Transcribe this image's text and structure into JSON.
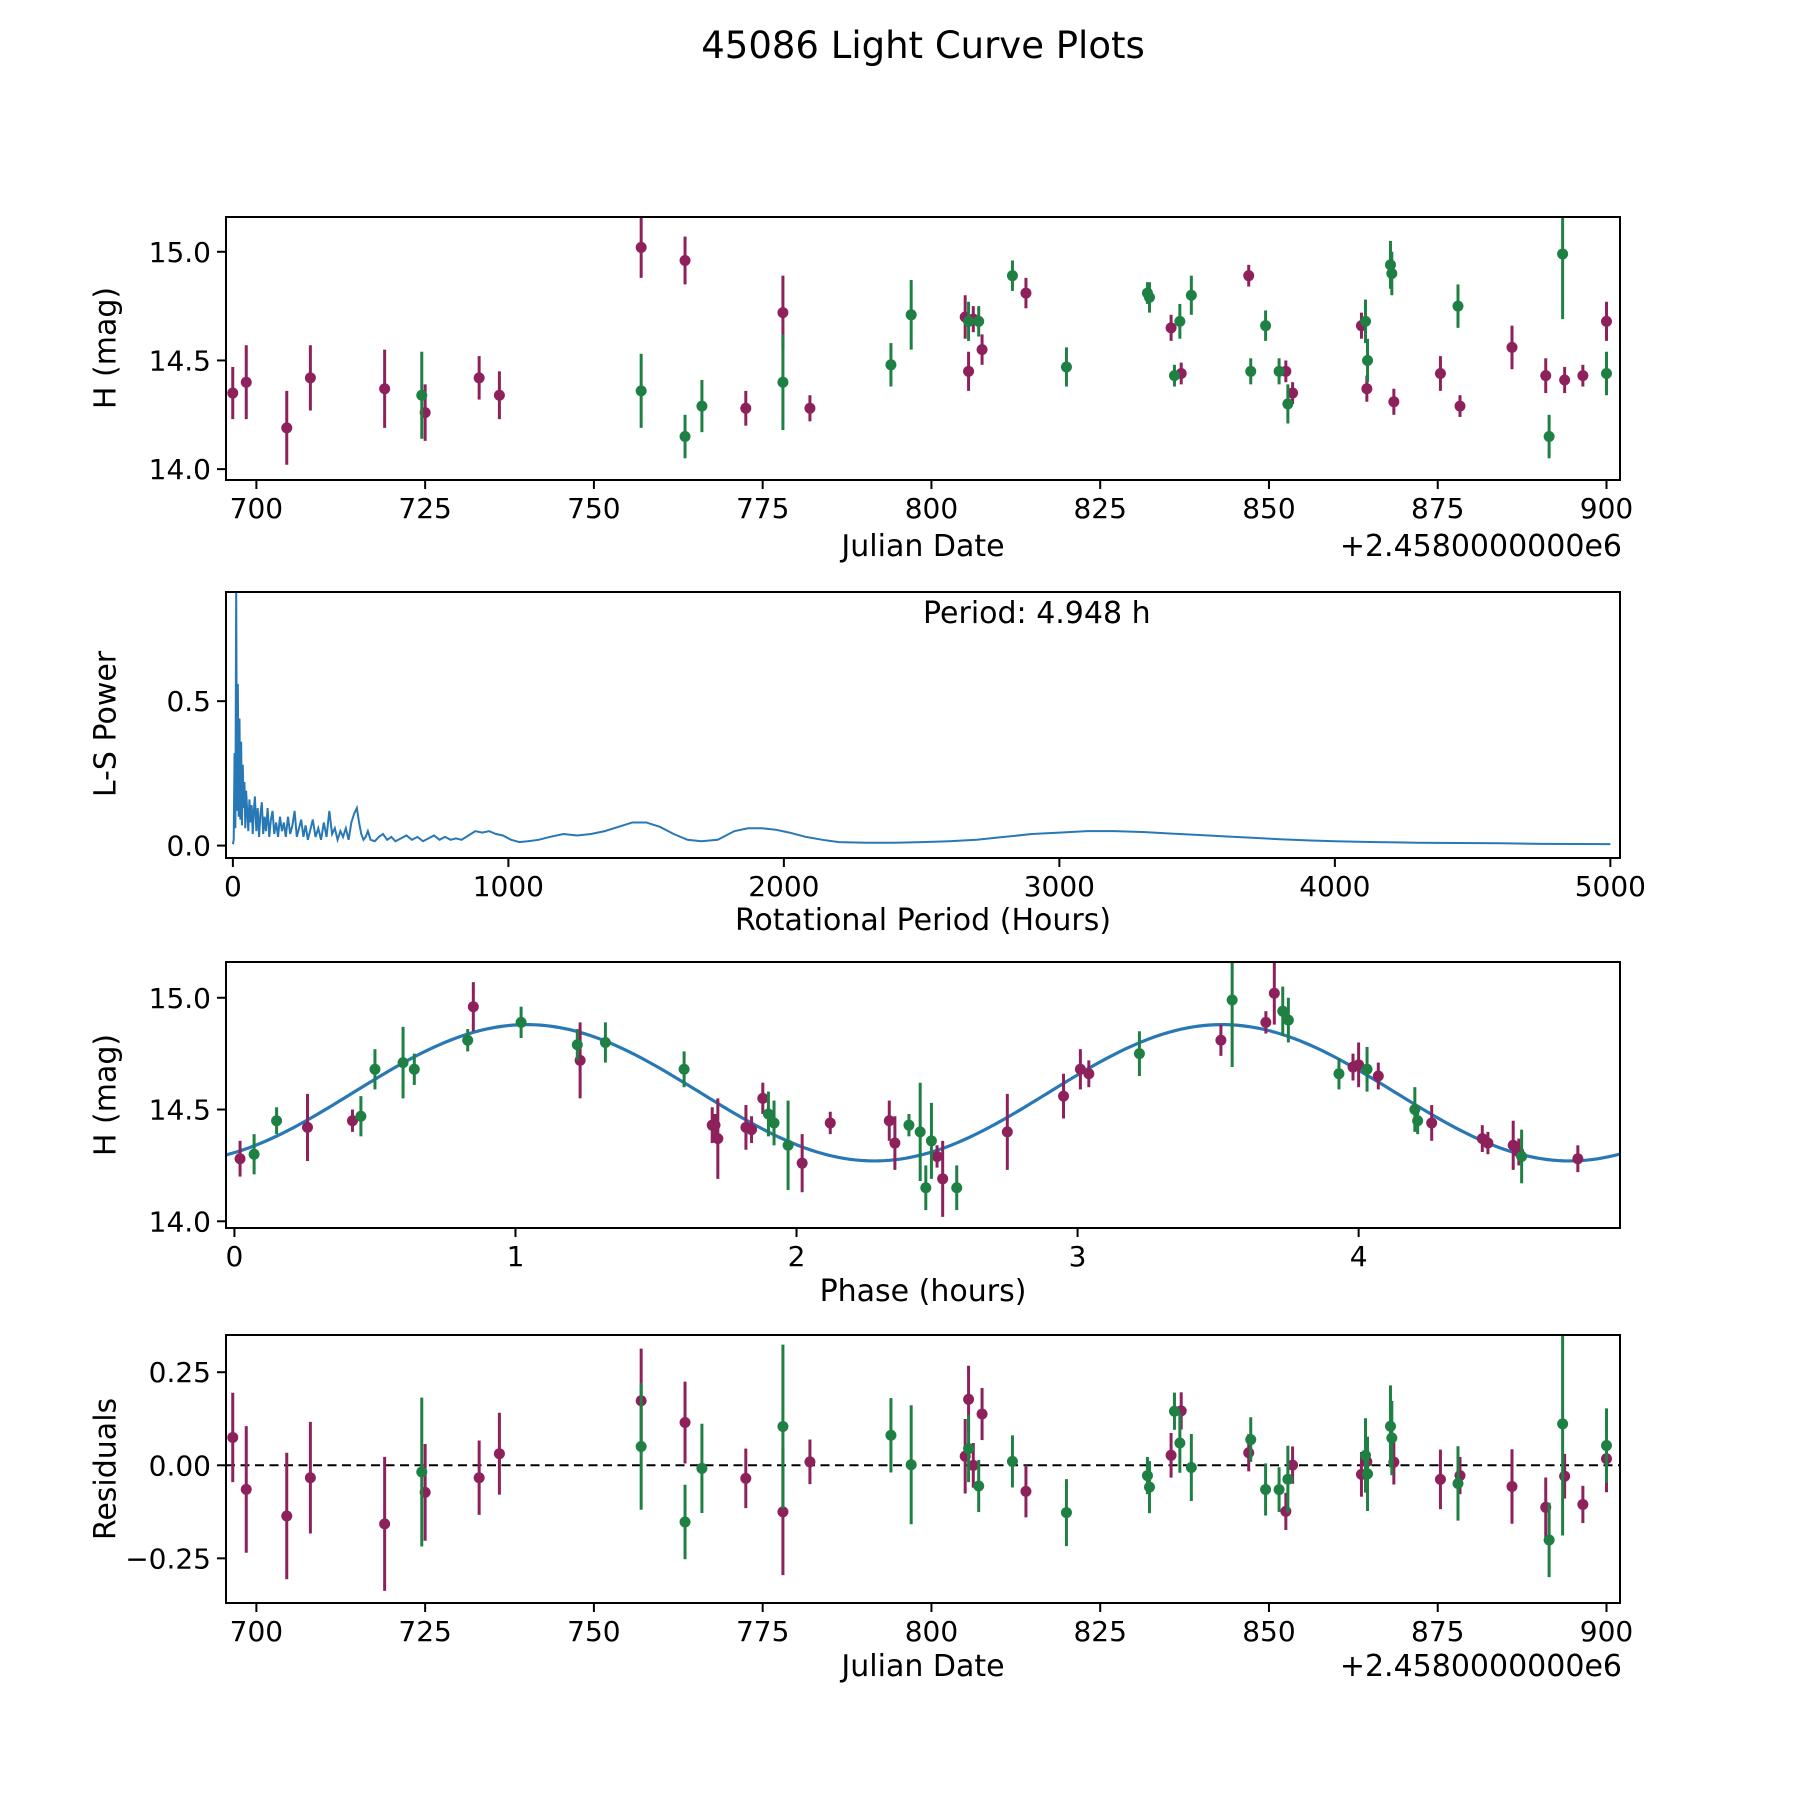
{
  "title": "45086 Light Curve Plots",
  "band_colors": {
    "green": "#1f8044",
    "purple": "#8e215c"
  },
  "line_color": "#2878b5",
  "points": [
    {
      "band": "purple",
      "jd": 696.5,
      "phase": 2.35,
      "mag": 14.35,
      "err": 0.12
    },
    {
      "band": "purple",
      "jd": 698.5,
      "phase": 2.75,
      "mag": 14.4,
      "err": 0.17
    },
    {
      "band": "purple",
      "jd": 704.5,
      "phase": 2.52,
      "mag": 14.19,
      "err": 0.17
    },
    {
      "band": "purple",
      "jd": 708.0,
      "phase": 0.26,
      "mag": 14.42,
      "err": 0.15
    },
    {
      "band": "purple",
      "jd": 719.0,
      "phase": 1.72,
      "mag": 14.37,
      "err": 0.18
    },
    {
      "band": "purple",
      "jd": 725.0,
      "phase": 2.02,
      "mag": 14.26,
      "err": 0.13
    },
    {
      "band": "purple",
      "jd": 733.0,
      "phase": 1.82,
      "mag": 14.42,
      "err": 0.1
    },
    {
      "band": "purple",
      "jd": 736.0,
      "phase": 4.55,
      "mag": 14.34,
      "err": 0.11
    },
    {
      "band": "purple",
      "jd": 757.0,
      "phase": 3.7,
      "mag": 15.02,
      "err": 0.14
    },
    {
      "band": "purple",
      "jd": 763.5,
      "phase": 0.85,
      "mag": 14.96,
      "err": 0.11
    },
    {
      "band": "purple",
      "jd": 772.5,
      "phase": 0.02,
      "mag": 14.28,
      "err": 0.08
    },
    {
      "band": "purple",
      "jd": 778.0,
      "phase": 1.23,
      "mag": 14.72,
      "err": 0.17
    },
    {
      "band": "purple",
      "jd": 782.0,
      "phase": 4.78,
      "mag": 14.28,
      "err": 0.06
    },
    {
      "band": "purple",
      "jd": 805.0,
      "phase": 4.0,
      "mag": 14.7,
      "err": 0.1
    },
    {
      "band": "purple",
      "jd": 805.5,
      "phase": 2.33,
      "mag": 14.45,
      "err": 0.09
    },
    {
      "band": "purple",
      "jd": 806.2,
      "phase": 3.98,
      "mag": 14.69,
      "err": 0.06
    },
    {
      "band": "purple",
      "jd": 807.5,
      "phase": 1.88,
      "mag": 14.55,
      "err": 0.07
    },
    {
      "band": "purple",
      "jd": 814.0,
      "phase": 3.51,
      "mag": 14.81,
      "err": 0.07
    },
    {
      "band": "purple",
      "jd": 835.5,
      "phase": 4.07,
      "mag": 14.65,
      "err": 0.06
    },
    {
      "band": "purple",
      "jd": 837.0,
      "phase": 2.12,
      "mag": 14.44,
      "err": 0.05
    },
    {
      "band": "purple",
      "jd": 847.0,
      "phase": 3.67,
      "mag": 14.89,
      "err": 0.05
    },
    {
      "band": "purple",
      "jd": 852.5,
      "phase": 0.42,
      "mag": 14.45,
      "err": 0.05
    },
    {
      "band": "purple",
      "jd": 853.5,
      "phase": 4.46,
      "mag": 14.35,
      "err": 0.05
    },
    {
      "band": "purple",
      "jd": 863.7,
      "phase": 3.04,
      "mag": 14.66,
      "err": 0.06
    },
    {
      "band": "purple",
      "jd": 864.5,
      "phase": 4.44,
      "mag": 14.37,
      "err": 0.06
    },
    {
      "band": "purple",
      "jd": 868.5,
      "phase": 4.57,
      "mag": 14.31,
      "err": 0.06
    },
    {
      "band": "purple",
      "jd": 875.4,
      "phase": 4.26,
      "mag": 14.44,
      "err": 0.08
    },
    {
      "band": "purple",
      "jd": 878.3,
      "phase": 2.5,
      "mag": 14.29,
      "err": 0.05
    },
    {
      "band": "purple",
      "jd": 886.0,
      "phase": 2.95,
      "mag": 14.56,
      "err": 0.1
    },
    {
      "band": "purple",
      "jd": 891.0,
      "phase": 1.7,
      "mag": 14.43,
      "err": 0.08
    },
    {
      "band": "purple",
      "jd": 893.8,
      "phase": 1.84,
      "mag": 14.41,
      "err": 0.06
    },
    {
      "band": "purple",
      "jd": 896.5,
      "phase": 1.71,
      "mag": 14.43,
      "err": 0.05
    },
    {
      "band": "purple",
      "jd": 900.0,
      "phase": 3.01,
      "mag": 14.68,
      "err": 0.09
    },
    {
      "band": "green",
      "jd": 724.5,
      "phase": 1.97,
      "mag": 14.34,
      "err": 0.2
    },
    {
      "band": "green",
      "jd": 757.0,
      "phase": 2.48,
      "mag": 14.36,
      "err": 0.17
    },
    {
      "band": "green",
      "jd": 763.5,
      "phase": 2.46,
      "mag": 14.15,
      "err": 0.1
    },
    {
      "band": "green",
      "jd": 766.0,
      "phase": 4.58,
      "mag": 14.29,
      "err": 0.12
    },
    {
      "band": "green",
      "jd": 778.0,
      "phase": 2.44,
      "mag": 14.4,
      "err": 0.22
    },
    {
      "band": "green",
      "jd": 794.0,
      "phase": 1.9,
      "mag": 14.48,
      "err": 0.1
    },
    {
      "band": "green",
      "jd": 797.0,
      "phase": 0.6,
      "mag": 14.71,
      "err": 0.16
    },
    {
      "band": "green",
      "jd": 805.5,
      "phase": 0.5,
      "mag": 14.68,
      "err": 0.09
    },
    {
      "band": "green",
      "jd": 807.0,
      "phase": 0.64,
      "mag": 14.68,
      "err": 0.07
    },
    {
      "band": "green",
      "jd": 812.0,
      "phase": 1.02,
      "mag": 14.89,
      "err": 0.07
    },
    {
      "band": "green",
      "jd": 820.0,
      "phase": 0.45,
      "mag": 14.47,
      "err": 0.09
    },
    {
      "band": "green",
      "jd": 832.0,
      "phase": 0.83,
      "mag": 14.81,
      "err": 0.05
    },
    {
      "band": "green",
      "jd": 832.3,
      "phase": 1.22,
      "mag": 14.79,
      "err": 0.07
    },
    {
      "band": "green",
      "jd": 836.0,
      "phase": 2.4,
      "mag": 14.43,
      "err": 0.05
    },
    {
      "band": "green",
      "jd": 836.8,
      "phase": 1.6,
      "mag": 14.68,
      "err": 0.08
    },
    {
      "band": "green",
      "jd": 838.5,
      "phase": 1.32,
      "mag": 14.8,
      "err": 0.09
    },
    {
      "band": "green",
      "jd": 847.3,
      "phase": 0.15,
      "mag": 14.45,
      "err": 0.06
    },
    {
      "band": "green",
      "jd": 849.5,
      "phase": 3.93,
      "mag": 14.66,
      "err": 0.07
    },
    {
      "band": "green",
      "jd": 851.5,
      "phase": 4.21,
      "mag": 14.45,
      "err": 0.06
    },
    {
      "band": "green",
      "jd": 852.8,
      "phase": 0.07,
      "mag": 14.3,
      "err": 0.09
    },
    {
      "band": "green",
      "jd": 864.3,
      "phase": 4.03,
      "mag": 14.68,
      "err": 0.1
    },
    {
      "band": "green",
      "jd": 864.6,
      "phase": 4.2,
      "mag": 14.5,
      "err": 0.1
    },
    {
      "band": "green",
      "jd": 868.0,
      "phase": 3.73,
      "mag": 14.94,
      "err": 0.11
    },
    {
      "band": "green",
      "jd": 868.2,
      "phase": 3.75,
      "mag": 14.9,
      "err": 0.1
    },
    {
      "band": "green",
      "jd": 878.0,
      "phase": 3.22,
      "mag": 14.75,
      "err": 0.1
    },
    {
      "band": "green",
      "jd": 891.5,
      "phase": 2.57,
      "mag": 14.15,
      "err": 0.1
    },
    {
      "band": "green",
      "jd": 893.5,
      "phase": 3.55,
      "mag": 14.99,
      "err": 0.3
    },
    {
      "band": "green",
      "jd": 900.0,
      "phase": 1.92,
      "mag": 14.44,
      "err": 0.1
    }
  ],
  "chart_data": [
    {
      "id": "lc",
      "type": "scatter",
      "title": "",
      "xlabel": "Julian Date",
      "x_offset": "+2.4580000000e6",
      "ylabel": "H (mag)",
      "points_x": "jd",
      "points_y": "mag",
      "xlim": [
        695.5,
        902
      ],
      "ylim": [
        13.95,
        15.16
      ],
      "xticks": {
        "values": [
          700,
          725,
          750,
          775,
          800,
          825,
          850,
          875,
          900
        ],
        "labels": [
          "700",
          "725",
          "750",
          "775",
          "800",
          "825",
          "850",
          "875",
          "900"
        ]
      },
      "yticks": {
        "values": [
          14.0,
          14.5,
          15.0
        ],
        "labels": [
          "14.0",
          "14.5",
          "15.0"
        ]
      }
    },
    {
      "id": "ls",
      "type": "line",
      "xlabel": "Rotational Period (Hours)",
      "ylabel": "L-S Power",
      "annotation": "Period: 4.948 h",
      "xlim": [
        -25,
        5035
      ],
      "ylim": [
        -0.043,
        0.878
      ],
      "xticks": {
        "values": [
          0,
          1000,
          2000,
          3000,
          4000,
          5000
        ],
        "labels": [
          "0",
          "1000",
          "2000",
          "3000",
          "4000",
          "5000"
        ]
      },
      "yticks": {
        "values": [
          0.0,
          0.5
        ],
        "labels": [
          "0.0",
          "0.5"
        ]
      },
      "curve": [
        [
          0,
          0.005
        ],
        [
          3,
          0.02
        ],
        [
          6,
          0.32
        ],
        [
          9,
          0.06
        ],
        [
          12,
          0.9
        ],
        [
          15,
          0.12
        ],
        [
          18,
          0.56
        ],
        [
          21,
          0.1
        ],
        [
          24,
          0.44
        ],
        [
          27,
          0.09
        ],
        [
          30,
          0.36
        ],
        [
          33,
          0.07
        ],
        [
          36,
          0.28
        ],
        [
          39,
          0.13
        ],
        [
          42,
          0.22
        ],
        [
          45,
          0.06
        ],
        [
          48,
          0.19
        ],
        [
          52,
          0.12
        ],
        [
          56,
          0.05
        ],
        [
          60,
          0.16
        ],
        [
          64,
          0.08
        ],
        [
          68,
          0.14
        ],
        [
          72,
          0.04
        ],
        [
          76,
          0.12
        ],
        [
          80,
          0.17
        ],
        [
          85,
          0.05
        ],
        [
          90,
          0.13
        ],
        [
          95,
          0.03
        ],
        [
          100,
          0.11
        ],
        [
          105,
          0.15
        ],
        [
          110,
          0.04
        ],
        [
          115,
          0.1
        ],
        [
          120,
          0.05
        ],
        [
          126,
          0.13
        ],
        [
          132,
          0.03
        ],
        [
          138,
          0.09
        ],
        [
          144,
          0.12
        ],
        [
          150,
          0.04
        ],
        [
          157,
          0.08
        ],
        [
          164,
          0.03
        ],
        [
          171,
          0.1
        ],
        [
          178,
          0.05
        ],
        [
          185,
          0.08
        ],
        [
          192,
          0.03
        ],
        [
          200,
          0.1
        ],
        [
          208,
          0.04
        ],
        [
          216,
          0.07
        ],
        [
          224,
          0.12
        ],
        [
          232,
          0.03
        ],
        [
          240,
          0.06
        ],
        [
          248,
          0.09
        ],
        [
          256,
          0.03
        ],
        [
          264,
          0.07
        ],
        [
          272,
          0.02
        ],
        [
          280,
          0.05
        ],
        [
          290,
          0.09
        ],
        [
          300,
          0.03
        ],
        [
          310,
          0.06
        ],
        [
          320,
          0.02
        ],
        [
          330,
          0.08
        ],
        [
          340,
          0.03
        ],
        [
          350,
          0.12
        ],
        [
          360,
          0.04
        ],
        [
          370,
          0.06
        ],
        [
          380,
          0.02
        ],
        [
          390,
          0.05
        ],
        [
          400,
          0.03
        ],
        [
          410,
          0.06
        ],
        [
          420,
          0.02
        ],
        [
          430,
          0.08
        ],
        [
          440,
          0.11
        ],
        [
          450,
          0.13
        ],
        [
          458,
          0.08
        ],
        [
          466,
          0.04
        ],
        [
          474,
          0.02
        ],
        [
          482,
          0.03
        ],
        [
          490,
          0.05
        ],
        [
          500,
          0.02
        ],
        [
          515,
          0.015
        ],
        [
          530,
          0.03
        ],
        [
          545,
          0.04
        ],
        [
          560,
          0.02
        ],
        [
          575,
          0.03
        ],
        [
          590,
          0.015
        ],
        [
          610,
          0.025
        ],
        [
          630,
          0.035
        ],
        [
          650,
          0.02
        ],
        [
          670,
          0.03
        ],
        [
          690,
          0.015
        ],
        [
          710,
          0.025
        ],
        [
          730,
          0.035
        ],
        [
          750,
          0.02
        ],
        [
          770,
          0.03
        ],
        [
          790,
          0.02
        ],
        [
          810,
          0.025
        ],
        [
          830,
          0.02
        ],
        [
          855,
          0.035
        ],
        [
          880,
          0.05
        ],
        [
          905,
          0.045
        ],
        [
          930,
          0.05
        ],
        [
          955,
          0.04
        ],
        [
          980,
          0.035
        ],
        [
          1010,
          0.02
        ],
        [
          1040,
          0.012
        ],
        [
          1070,
          0.015
        ],
        [
          1110,
          0.02
        ],
        [
          1150,
          0.03
        ],
        [
          1200,
          0.04
        ],
        [
          1250,
          0.035
        ],
        [
          1300,
          0.04
        ],
        [
          1350,
          0.05
        ],
        [
          1400,
          0.065
        ],
        [
          1450,
          0.08
        ],
        [
          1500,
          0.08
        ],
        [
          1550,
          0.065
        ],
        [
          1600,
          0.04
        ],
        [
          1650,
          0.02
        ],
        [
          1700,
          0.015
        ],
        [
          1760,
          0.02
        ],
        [
          1820,
          0.05
        ],
        [
          1870,
          0.06
        ],
        [
          1920,
          0.06
        ],
        [
          1970,
          0.055
        ],
        [
          2020,
          0.045
        ],
        [
          2080,
          0.03
        ],
        [
          2140,
          0.02
        ],
        [
          2200,
          0.012
        ],
        [
          2300,
          0.01
        ],
        [
          2400,
          0.01
        ],
        [
          2500,
          0.012
        ],
        [
          2600,
          0.015
        ],
        [
          2700,
          0.02
        ],
        [
          2800,
          0.03
        ],
        [
          2900,
          0.04
        ],
        [
          3000,
          0.045
        ],
        [
          3100,
          0.05
        ],
        [
          3200,
          0.05
        ],
        [
          3300,
          0.047
        ],
        [
          3400,
          0.042
        ],
        [
          3500,
          0.037
        ],
        [
          3600,
          0.032
        ],
        [
          3700,
          0.027
        ],
        [
          3800,
          0.022
        ],
        [
          3900,
          0.018
        ],
        [
          4000,
          0.015
        ],
        [
          4150,
          0.012
        ],
        [
          4300,
          0.01
        ],
        [
          4450,
          0.009
        ],
        [
          4600,
          0.008
        ],
        [
          4750,
          0.006
        ],
        [
          5000,
          0.005
        ]
      ]
    },
    {
      "id": "ph",
      "type": "scatter",
      "xlabel": "Phase (hours)",
      "ylabel": "H (mag)",
      "points_x": "phase",
      "points_y": "mag",
      "model": {
        "mean": 14.575,
        "amplitude": 0.305,
        "phase_zero": 0.4215,
        "oscillation_period": 2.474,
        "rotation_period_hours": 4.948
      },
      "xlim": [
        -0.03,
        4.93
      ],
      "ylim": [
        13.97,
        15.16
      ],
      "xticks": {
        "values": [
          0,
          1,
          2,
          3,
          4
        ],
        "labels": [
          "0",
          "1",
          "2",
          "3",
          "4"
        ]
      },
      "yticks": {
        "values": [
          14.0,
          14.5,
          15.0
        ],
        "labels": [
          "14.0",
          "14.5",
          "15.0"
        ]
      }
    },
    {
      "id": "res",
      "type": "scatter",
      "xlabel": "Julian Date",
      "x_offset": "+2.4580000000e6",
      "ylabel": "Residuals",
      "points_x": "jd",
      "points_y": "resid",
      "zero_line": true,
      "xlim": [
        695.5,
        902
      ],
      "ylim": [
        -0.37,
        0.35
      ],
      "xticks": {
        "values": [
          700,
          725,
          750,
          775,
          800,
          825,
          850,
          875,
          900
        ],
        "labels": [
          "700",
          "725",
          "750",
          "775",
          "800",
          "825",
          "850",
          "875",
          "900"
        ]
      },
      "yticks": {
        "values": [
          -0.25,
          0.0,
          0.25
        ],
        "labels": [
          "−0.25",
          "0.00",
          "0.25"
        ]
      }
    }
  ]
}
